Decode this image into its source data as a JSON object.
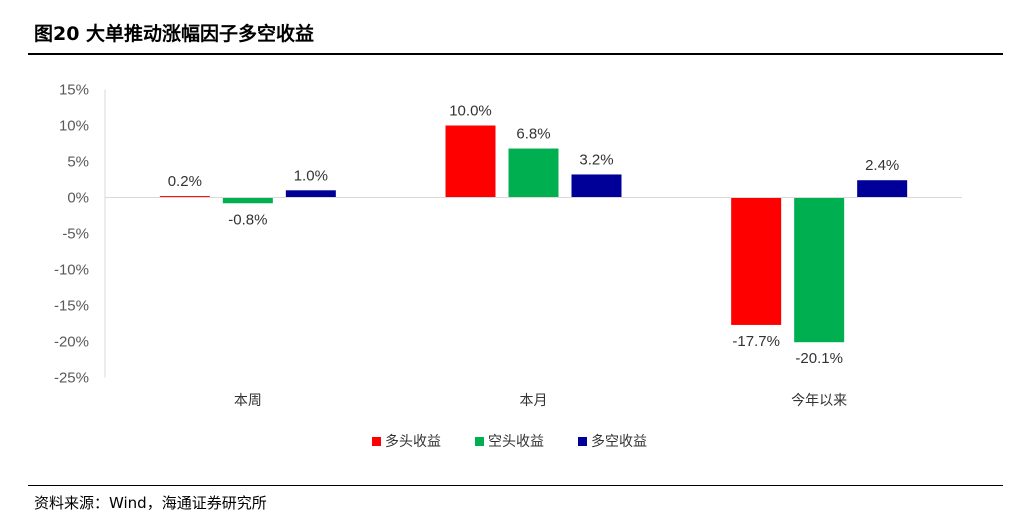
{
  "header": {
    "title": "图20 大单推动涨幅因子多空收益"
  },
  "footer": {
    "source": "资料来源：Wind，海通证券研究所"
  },
  "chart_data": {
    "type": "bar",
    "categories": [
      "本周",
      "本月",
      "今年以来"
    ],
    "series": [
      {
        "name": "多头收益",
        "color": "#ff0000",
        "values": [
          0.2,
          10.0,
          -17.7
        ]
      },
      {
        "name": "空头收益",
        "color": "#00b050",
        "values": [
          -0.8,
          6.8,
          -20.1
        ]
      },
      {
        "name": "多空收益",
        "color": "#000099",
        "values": [
          1.0,
          3.2,
          2.4
        ]
      }
    ],
    "ylim": [
      -25,
      15
    ],
    "yticks": [
      15,
      10,
      5,
      0,
      -5,
      -10,
      -15,
      -20,
      -25
    ],
    "ytick_labels": [
      "15%",
      "10%",
      "5%",
      "0%",
      "-5%",
      "-10%",
      "-15%",
      "-20%",
      "-25%"
    ],
    "data_labels": [
      [
        "0.2%",
        "10.0%",
        "-17.7%"
      ],
      [
        "-0.8%",
        "6.8%",
        "-20.1%"
      ],
      [
        "1.0%",
        "3.2%",
        "2.4%"
      ]
    ],
    "legend_position": "bottom",
    "grid": false
  }
}
